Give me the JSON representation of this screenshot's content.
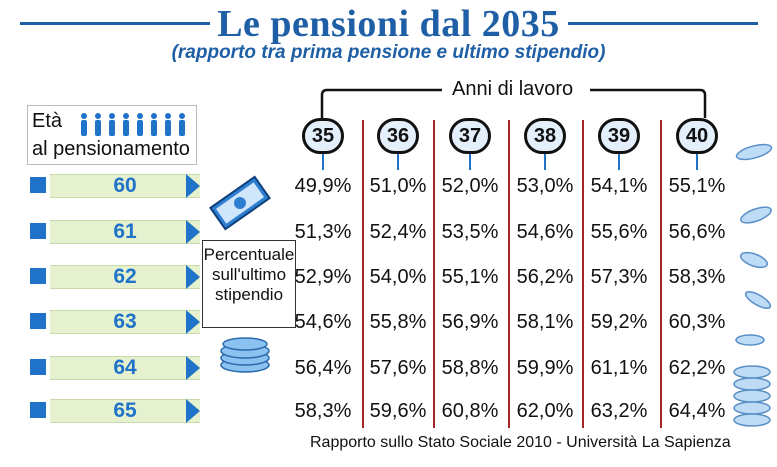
{
  "title": "Le pensioni dal 2035",
  "subtitle": "(rapporto tra prima pensione e ultimo stipendio)",
  "x_group_label": "Anni di lavoro",
  "y_group_label_top": "Età",
  "y_group_label_bottom": "al pensionamento",
  "center_label": [
    "Percentuale",
    "sull'ultimo",
    "stipendio"
  ],
  "source": "Rapporto sullo Stato Sociale 2010 - Università La Sapienza",
  "colors": {
    "blue": "#1f73c9",
    "title_blue": "#1f5fa6",
    "band_green": "#e6f1cf",
    "divider_red": "#a32424"
  },
  "icons": [
    "people-icon",
    "banknotes-icon",
    "coins-icon",
    "flying-coins-icon"
  ],
  "chart_data": {
    "type": "table",
    "columns": [
      "35",
      "36",
      "37",
      "38",
      "39",
      "40"
    ],
    "rows": [
      "60",
      "61",
      "62",
      "63",
      "64",
      "65"
    ],
    "display_values": [
      [
        "49,9%",
        "51,0%",
        "52,0%",
        "53,0%",
        "54,1%",
        "55,1%"
      ],
      [
        "51,3%",
        "52,4%",
        "53,5%",
        "54,6%",
        "55,6%",
        "56,6%"
      ],
      [
        "52,9%",
        "54,0%",
        "55,1%",
        "56,2%",
        "57,3%",
        "58,3%"
      ],
      [
        "54,6%",
        "55,8%",
        "56,9%",
        "58,1%",
        "59,2%",
        "60,3%"
      ],
      [
        "56,4%",
        "57,6%",
        "58,8%",
        "59,9%",
        "61,1%",
        "62,2%"
      ],
      [
        "58,3%",
        "59,6%",
        "60,8%",
        "62,0%",
        "63,2%",
        "64,4%"
      ]
    ]
  }
}
